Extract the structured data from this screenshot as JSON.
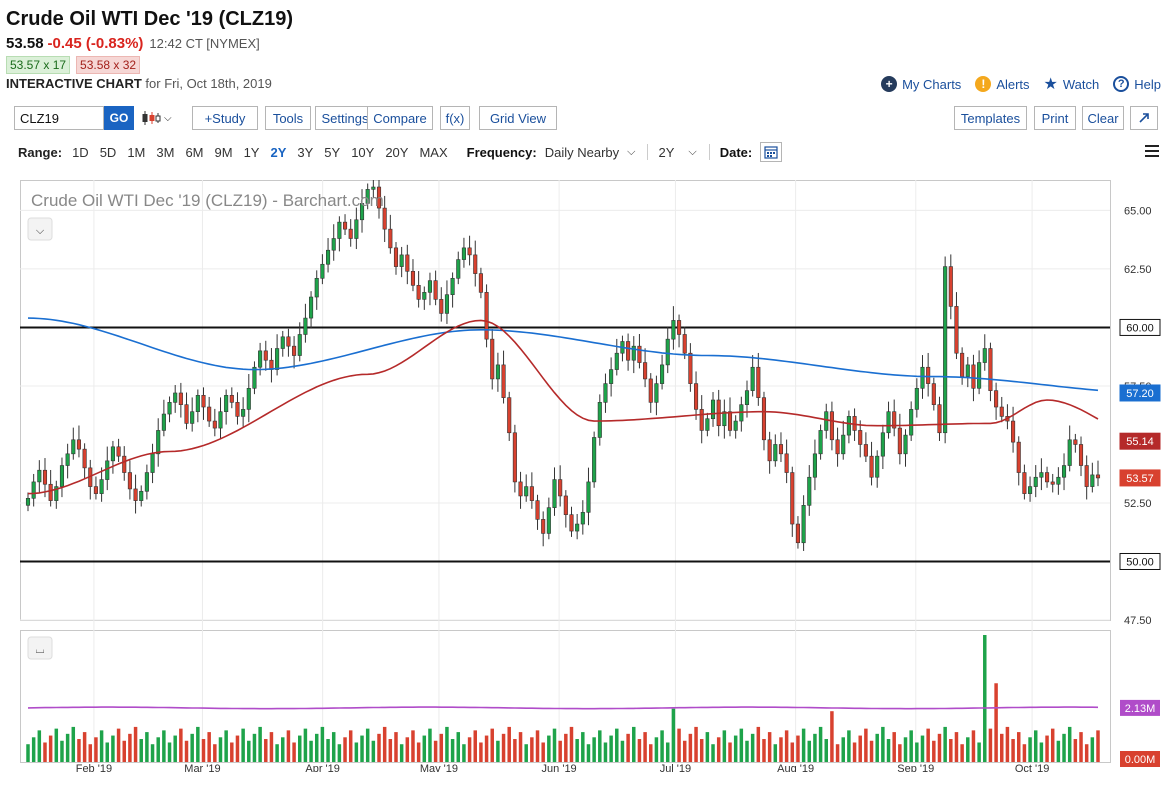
{
  "header": {
    "title": "Crude Oil WTI Dec '19 (CLZ19)",
    "last": "53.58",
    "change": "-0.45 (-0.83%)",
    "time": "12:42 CT [NYMEX]",
    "bid": "53.57 x 17",
    "ask": "53.58 x 32",
    "chart_label": "INTERACTIVE CHART",
    "chart_date": "for Fri, Oct 18th, 2019"
  },
  "top_links": {
    "my_charts": "My Charts",
    "alerts": "Alerts",
    "watch": "Watch",
    "help": "Help"
  },
  "toolbar": {
    "symbol_value": "CLZ19",
    "go": "GO",
    "study": "+Study",
    "tools": "Tools",
    "settings": "Settings",
    "compare": "Compare",
    "fx": "f(x)",
    "grid_view": "Grid View",
    "templates": "Templates",
    "print": "Print",
    "clear": "Clear"
  },
  "range_bar": {
    "range_label": "Range:",
    "ranges": [
      "1D",
      "5D",
      "1M",
      "3M",
      "6M",
      "9M",
      "1Y",
      "2Y",
      "3Y",
      "5Y",
      "10Y",
      "20Y",
      "MAX"
    ],
    "active_range": "2Y",
    "frequency_label": "Frequency:",
    "frequency_value": "Daily Nearby",
    "period_value": "2Y",
    "date_label": "Date:"
  },
  "icons": {
    "my_charts": "plus-circle-icon",
    "alerts": "alert-icon",
    "watch": "star-icon",
    "help": "help-icon",
    "chart_type": "candlestick-icon",
    "calendar": "calendar-icon",
    "menu": "hamburger-menu-icon",
    "expand": "expand-arrow-icon"
  },
  "colors": {
    "up": "#1ea34a",
    "down": "#d8412f",
    "ma_short": "#b52a2a",
    "ma_long": "#1a6fd1",
    "volume_avg": "#b04cc9",
    "accent": "#1a64c2"
  },
  "chart_data": {
    "type": "candlestick",
    "title": "Crude Oil WTI Dec '19 (CLZ19) - Barchart.com",
    "ylim": [
      47.5,
      66.3
    ],
    "y_ticks": [
      "65.00",
      "62.50",
      "57.50",
      "52.50",
      "47.50"
    ],
    "x_ticks": [
      "Feb '19",
      "Mar '19",
      "Apr '19",
      "May '19",
      "Jun '19",
      "Jul '19",
      "Aug '19",
      "Sep '19",
      "Oct '19"
    ],
    "x_tick_dates": [
      "2019-02-01",
      "2019-03-01",
      "2019-04-01",
      "2019-05-01",
      "2019-06-01",
      "2019-07-01",
      "2019-08-01",
      "2019-09-01",
      "2019-10-01"
    ],
    "x_start": "2019-01-15",
    "x_end": "2019-10-18",
    "horizontal_lines": [
      60.0,
      50.0
    ],
    "price_labels": [
      {
        "text": "60.00",
        "value": 60.0,
        "kind": "line"
      },
      {
        "text": "57.20",
        "value": 57.2,
        "kind": "ma_long"
      },
      {
        "text": "55.14",
        "value": 55.14,
        "kind": "ma_short"
      },
      {
        "text": "53.57",
        "value": 53.57,
        "kind": "last"
      },
      {
        "text": "50.00",
        "value": 50.0,
        "kind": "line"
      }
    ],
    "closes": [
      52.7,
      53.4,
      53.9,
      53.3,
      52.6,
      53.2,
      54.1,
      54.6,
      55.2,
      54.8,
      54.0,
      53.2,
      52.9,
      53.5,
      54.3,
      54.9,
      54.5,
      53.8,
      53.1,
      52.6,
      53.0,
      53.8,
      54.6,
      55.6,
      56.3,
      56.8,
      57.2,
      56.7,
      55.9,
      56.4,
      57.1,
      56.6,
      56.0,
      55.7,
      56.4,
      57.1,
      56.8,
      56.2,
      56.5,
      57.4,
      58.3,
      59.0,
      58.6,
      58.2,
      59.1,
      59.6,
      59.2,
      58.8,
      59.7,
      60.4,
      61.3,
      62.1,
      62.7,
      63.3,
      63.8,
      64.5,
      64.2,
      63.8,
      64.6,
      65.3,
      65.9,
      66.0,
      65.1,
      64.2,
      63.4,
      62.6,
      63.1,
      62.4,
      61.8,
      61.2,
      61.5,
      62.0,
      61.2,
      60.6,
      61.4,
      62.1,
      62.9,
      63.4,
      63.1,
      62.3,
      61.5,
      59.5,
      57.8,
      58.4,
      57.0,
      55.5,
      53.4,
      52.8,
      53.2,
      52.6,
      51.8,
      51.2,
      52.3,
      53.5,
      52.8,
      52.0,
      51.3,
      51.6,
      52.1,
      53.4,
      55.3,
      56.8,
      57.6,
      58.2,
      58.9,
      59.4,
      58.6,
      59.2,
      58.5,
      57.8,
      56.8,
      57.6,
      58.4,
      59.5,
      60.3,
      59.7,
      58.9,
      57.6,
      56.5,
      55.6,
      56.1,
      56.9,
      55.8,
      56.4,
      55.6,
      56.0,
      56.7,
      57.3,
      58.3,
      57.0,
      55.2,
      54.3,
      55.0,
      54.6,
      53.8,
      51.6,
      50.8,
      52.4,
      53.6,
      54.6,
      55.6,
      56.4,
      55.2,
      54.6,
      55.4,
      56.2,
      55.6,
      55.0,
      54.5,
      53.6,
      54.5,
      55.5,
      56.4,
      55.7,
      54.6,
      55.4,
      56.5,
      57.4,
      58.3,
      57.6,
      56.7,
      55.5,
      62.6,
      60.9,
      58.9,
      57.9,
      58.4,
      57.4,
      58.5,
      59.1,
      57.3,
      56.6,
      56.2,
      56.0,
      55.1,
      53.8,
      52.9,
      53.2,
      53.6,
      53.8,
      53.4,
      53.3,
      53.6,
      54.1,
      55.2,
      55.0,
      54.1,
      53.2,
      53.7,
      53.57
    ],
    "ma_short": [
      [
        0,
        52.9
      ],
      [
        25,
        54.7
      ],
      [
        60,
        58.0
      ],
      [
        80,
        60.3
      ],
      [
        100,
        56.0
      ],
      [
        130,
        56.4
      ],
      [
        150,
        55.8
      ],
      [
        170,
        55.9
      ],
      [
        180,
        56.9
      ],
      [
        199,
        55.14
      ]
    ],
    "ma_long": [
      [
        0,
        60.4
      ],
      [
        40,
        58.2
      ],
      [
        80,
        59.9
      ],
      [
        120,
        58.8
      ],
      [
        160,
        57.9
      ],
      [
        199,
        57.2
      ]
    ],
    "volume": {
      "top_tick": "2.13M",
      "bottom_tick": "0.00M",
      "average": 2.13,
      "max": 5.0,
      "spikes": [
        [
          169,
          5.0
        ],
        [
          171,
          3.1
        ],
        [
          142,
          2.0
        ],
        [
          114,
          2.1
        ]
      ]
    }
  }
}
